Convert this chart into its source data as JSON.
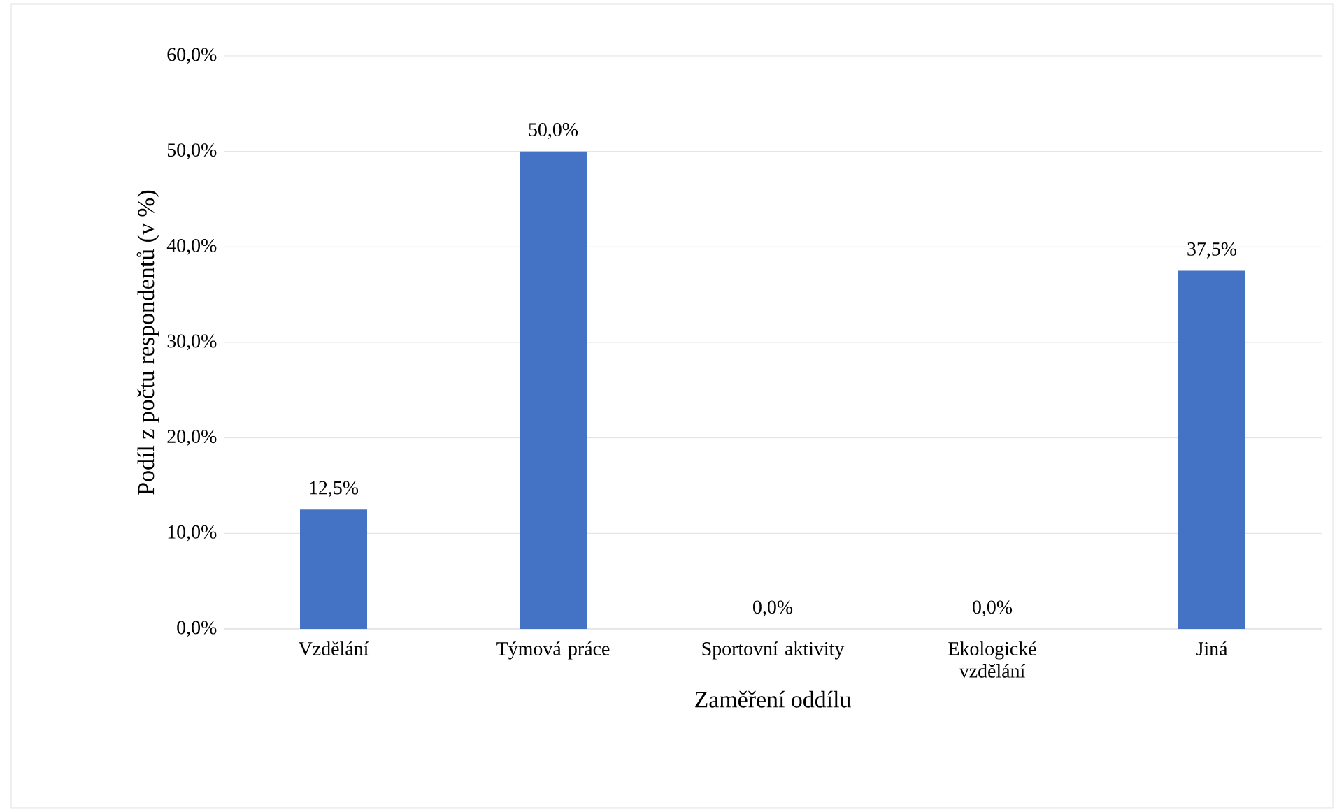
{
  "chart_data": {
    "type": "bar",
    "xlabel": "Zaměření oddílu",
    "ylabel": "Podíl z počtu respondentů (v %)",
    "categories": [
      "Vzdělání",
      "Týmová práce",
      "Sportovní aktivity",
      "Ekologické vzdělání",
      "Jiná"
    ],
    "values": [
      12.5,
      50,
      0,
      0,
      37.5
    ],
    "value_labels": [
      "12,5%",
      "50,0%",
      "0,0%",
      "0,0%",
      "37,5%"
    ],
    "color": "#4472c4",
    "ylim": [
      0,
      60
    ],
    "yticks": [
      {
        "value": 0,
        "label": "0,0%"
      },
      {
        "value": 10,
        "label": "10,0%"
      },
      {
        "value": 20,
        "label": "20,0%"
      },
      {
        "value": 30,
        "label": "30,0%"
      },
      {
        "value": 40,
        "label": "40,0%"
      },
      {
        "value": 50,
        "label": "50,0%"
      },
      {
        "value": 60,
        "label": "60,0%"
      }
    ],
    "grid": "y"
  }
}
